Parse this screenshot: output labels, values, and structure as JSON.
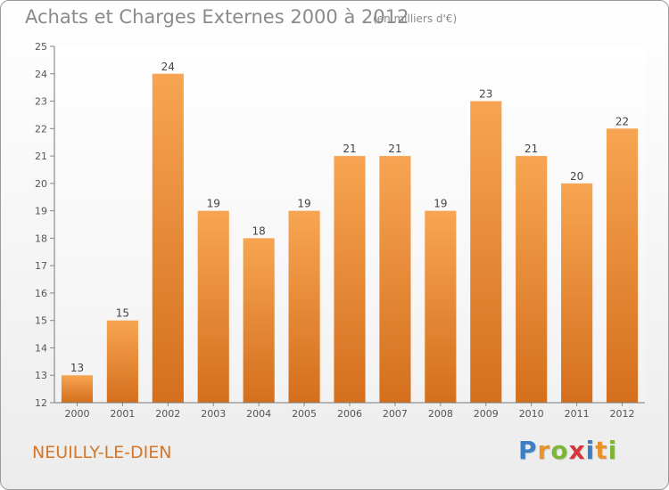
{
  "header": {
    "title": "Achats et Charges Externes 2000 à 2012",
    "unit": "(en milliers d'€)"
  },
  "footer": {
    "place": "NEUILLY-LE-DIEN",
    "logo_letters": [
      "P",
      "r",
      "o",
      "x",
      "i",
      "t",
      "i"
    ],
    "logo_colors": [
      "#3d7fc4",
      "#e8932a",
      "#7db637",
      "#d8353a",
      "#3d7fc4",
      "#e8932a",
      "#7db637"
    ]
  },
  "chart_data": {
    "type": "bar",
    "categories": [
      "2000",
      "2001",
      "2002",
      "2003",
      "2004",
      "2005",
      "2006",
      "2007",
      "2008",
      "2009",
      "2010",
      "2011",
      "2012"
    ],
    "values": [
      13,
      15,
      24,
      19,
      18,
      19,
      21,
      21,
      19,
      23,
      21,
      20,
      22
    ],
    "title": "Achats et Charges Externes 2000 à 2012",
    "xlabel": "",
    "ylabel": "",
    "ylim": [
      12,
      25
    ],
    "yticks": [
      12,
      13,
      14,
      15,
      16,
      17,
      18,
      19,
      20,
      21,
      22,
      23,
      24,
      25
    ],
    "grid": false,
    "bar_color": "#f0923a"
  }
}
